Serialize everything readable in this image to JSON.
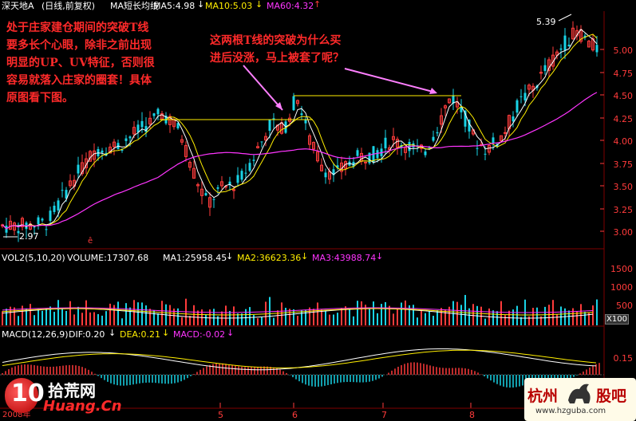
{
  "colors": {
    "bg": "#000000",
    "up": "#ff3b3b",
    "down": "#19d3e6",
    "ma5": "#ffffff",
    "ma10": "#ffee00",
    "ma60": "#ff35ff",
    "grid": "#8b0000",
    "annotation": "#ff2a2a",
    "arrow": "#ff7fff",
    "hline": "#ffee00"
  },
  "header": {
    "stock": "深天地A",
    "period": "(日线,前复权)",
    "indicator": "MA短长均线",
    "ma5": "MA5:4.98",
    "ma10": "MA10:5.03",
    "ma60": "MA60:4.32"
  },
  "price_axis": [
    "5.00",
    "4.75",
    "4.50",
    "4.25",
    "4.00",
    "3.75",
    "3.50",
    "3.25",
    "3.00"
  ],
  "low_label": "2.97",
  "high_label": "5.39",
  "annotation_left": {
    "lines": [
      "处于庄家建仓期间的突破T线",
      "要多长个心眼，除非之前出现",
      "明显的UP、UV特征，否则很",
      "容易就落入庄家的圈套！具体",
      "原图看下图。"
    ]
  },
  "annotation_right": {
    "lines": [
      "这两根T线的突破为什么买",
      "进后没涨，马上被套了呢？"
    ]
  },
  "volume_header": {
    "name": "VOL2(5,10,20)",
    "volume": "VOLUME:17307.68",
    "ma1": "MA1:25958.45",
    "ma2": "MA2:36623.36",
    "ma3": "MA3:43988.74"
  },
  "volume_axis": [
    "1500",
    "1000",
    "500"
  ],
  "volume_unit": "X100",
  "macd_header": {
    "name": "MACD(12,26,9)",
    "dif": "DIF:0.20",
    "dea": "DEA:0.21",
    "macd": "MACD:-0.02"
  },
  "macd_axis": [
    "0.15"
  ],
  "months": [
    "5",
    "6",
    "7",
    "8"
  ],
  "year_label": "2008年",
  "logo_left": {
    "brand": "拾荒网",
    "url": "Huang.Cn"
  },
  "logo_right": {
    "brand_left": "杭州",
    "brand_right": "股吧",
    "url": "www.hzguba.com"
  }
}
